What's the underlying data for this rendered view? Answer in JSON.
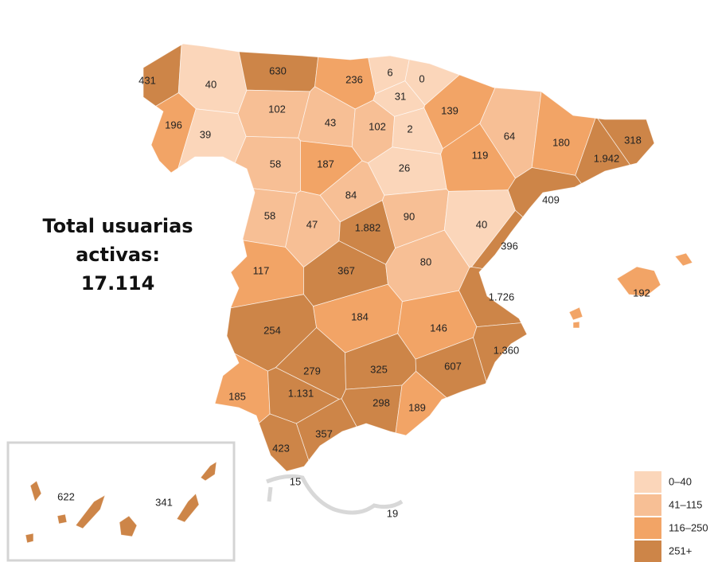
{
  "title": [
    "Total usuarias",
    "activas:",
    "17.114"
  ],
  "regions": [
    {
      "label": "431",
      "color": "#cd8548"
    },
    {
      "label": "40",
      "color": "#fbd6ba"
    },
    {
      "label": "630",
      "color": "#cd8548"
    },
    {
      "label": "236",
      "color": "#f2a466"
    },
    {
      "label": "6",
      "color": "#fbd6ba"
    },
    {
      "label": "0",
      "color": "#fbd6ba"
    },
    {
      "label": "31",
      "color": "#fbd6ba"
    },
    {
      "label": "139",
      "color": "#f2a466"
    },
    {
      "label": "196",
      "color": "#f2a466"
    },
    {
      "label": "39",
      "color": "#fbd6ba"
    },
    {
      "label": "102",
      "color": "#f7bf95"
    },
    {
      "label": "43",
      "color": "#f7bf95"
    },
    {
      "label": "102",
      "color": "#f7bf95"
    },
    {
      "label": "2",
      "color": "#fbd6ba"
    },
    {
      "label": "64",
      "color": "#f7bf95"
    },
    {
      "label": "180",
      "color": "#f2a466"
    },
    {
      "label": "318",
      "color": "#cd8548"
    },
    {
      "label": "1.942",
      "color": "#cd8548"
    },
    {
      "label": "58",
      "color": "#f7bf95"
    },
    {
      "label": "187",
      "color": "#f2a466"
    },
    {
      "label": "26",
      "color": "#fbd6ba"
    },
    {
      "label": "119",
      "color": "#f2a466"
    },
    {
      "label": "84",
      "color": "#f7bf95"
    },
    {
      "label": "409",
      "color": "#cd8548"
    },
    {
      "label": "58",
      "color": "#f7bf95"
    },
    {
      "label": "47",
      "color": "#f7bf95"
    },
    {
      "label": "1.882",
      "color": "#cd8548"
    },
    {
      "label": "90",
      "color": "#f7bf95"
    },
    {
      "label": "40",
      "color": "#fbd6ba"
    },
    {
      "label": "396",
      "color": "#cd8548"
    },
    {
      "label": "117",
      "color": "#f2a466"
    },
    {
      "label": "367",
      "color": "#cd8548"
    },
    {
      "label": "80",
      "color": "#f7bf95"
    },
    {
      "label": "1.726",
      "color": "#cd8548"
    },
    {
      "label": "254",
      "color": "#cd8548"
    },
    {
      "label": "184",
      "color": "#f2a466"
    },
    {
      "label": "146",
      "color": "#f2a466"
    },
    {
      "label": "1.360",
      "color": "#cd8548"
    },
    {
      "label": "607",
      "color": "#cd8548"
    },
    {
      "label": "279",
      "color": "#cd8548"
    },
    {
      "label": "325",
      "color": "#cd8548"
    },
    {
      "label": "185",
      "color": "#f2a466"
    },
    {
      "label": "1.131",
      "color": "#cd8548"
    },
    {
      "label": "298",
      "color": "#cd8548"
    },
    {
      "label": "189",
      "color": "#f2a466"
    },
    {
      "label": "357",
      "color": "#cd8548"
    },
    {
      "label": "423",
      "color": "#cd8548"
    },
    {
      "label": "192",
      "color": "#f2a466"
    },
    {
      "label": "15"
    },
    {
      "label": "19"
    },
    {
      "label": "622",
      "color": "#cd8548"
    },
    {
      "label": "341",
      "color": "#cd8548"
    }
  ],
  "legend": [
    {
      "label": "0–40",
      "color": "#fbd6ba"
    },
    {
      "label": "41–115",
      "color": "#f7bf95"
    },
    {
      "label": "116–250",
      "color": "#f2a466"
    },
    {
      "label": "251+",
      "color": "#cd8548"
    }
  ]
}
